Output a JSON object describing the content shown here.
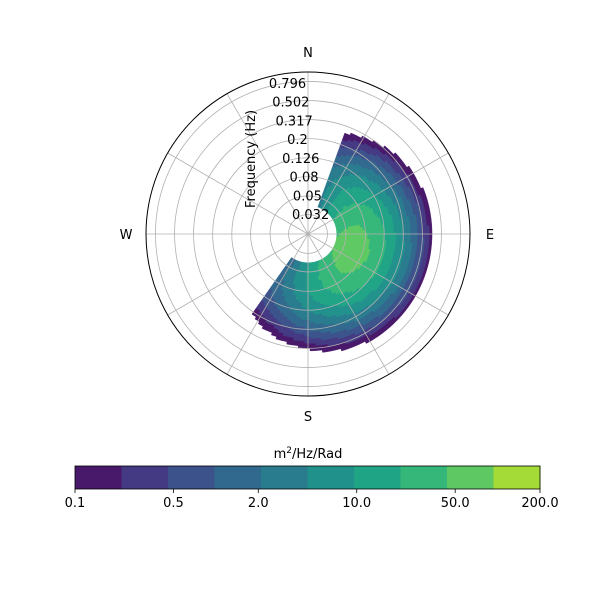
{
  "chart_data": {
    "type": "heatmap",
    "subtype": "polar-directional-spectrum",
    "radial_axis": {
      "label": "Frequency (Hz)",
      "scale": "log",
      "ticks": [
        "0.032",
        "0.05",
        "0.08",
        "0.126",
        "0.2",
        "0.317",
        "0.502",
        "0.796"
      ],
      "tick_values": [
        0.032,
        0.05,
        0.08,
        0.126,
        0.2,
        0.317,
        0.502,
        0.796
      ]
    },
    "angular_axis": {
      "labels": [
        "N",
        "E",
        "S",
        "W"
      ],
      "zero": "N",
      "direction": "clockwise"
    },
    "grid": true,
    "colorbar": {
      "label_base": "m",
      "label_sup": "2",
      "label_rest": "/Hz/Rad",
      "orientation": "horizontal",
      "position": "bottom",
      "scale": "log",
      "range": [
        0.1,
        200.0
      ],
      "ticks": [
        "0.1",
        "0.5",
        "2.0",
        "10.0",
        "50.0",
        "200.0"
      ],
      "tick_values": [
        0.1,
        0.5,
        2.0,
        10.0,
        50.0,
        200.0
      ],
      "levels": 10,
      "colors": [
        "#48186a",
        "#443983",
        "#3b528b",
        "#31688e",
        "#287c8e",
        "#21918c",
        "#20a486",
        "#35b779",
        "#5ec962",
        "#a5db36",
        "#e0e31e"
      ]
    },
    "spectrum": {
      "peak_direction_deg": 110,
      "peak_frequency_hz": 0.06,
      "direction_range_deg": [
        20,
        215
      ],
      "frequency_range_hz": [
        0.04,
        0.4
      ],
      "peak_value": 60
    }
  }
}
